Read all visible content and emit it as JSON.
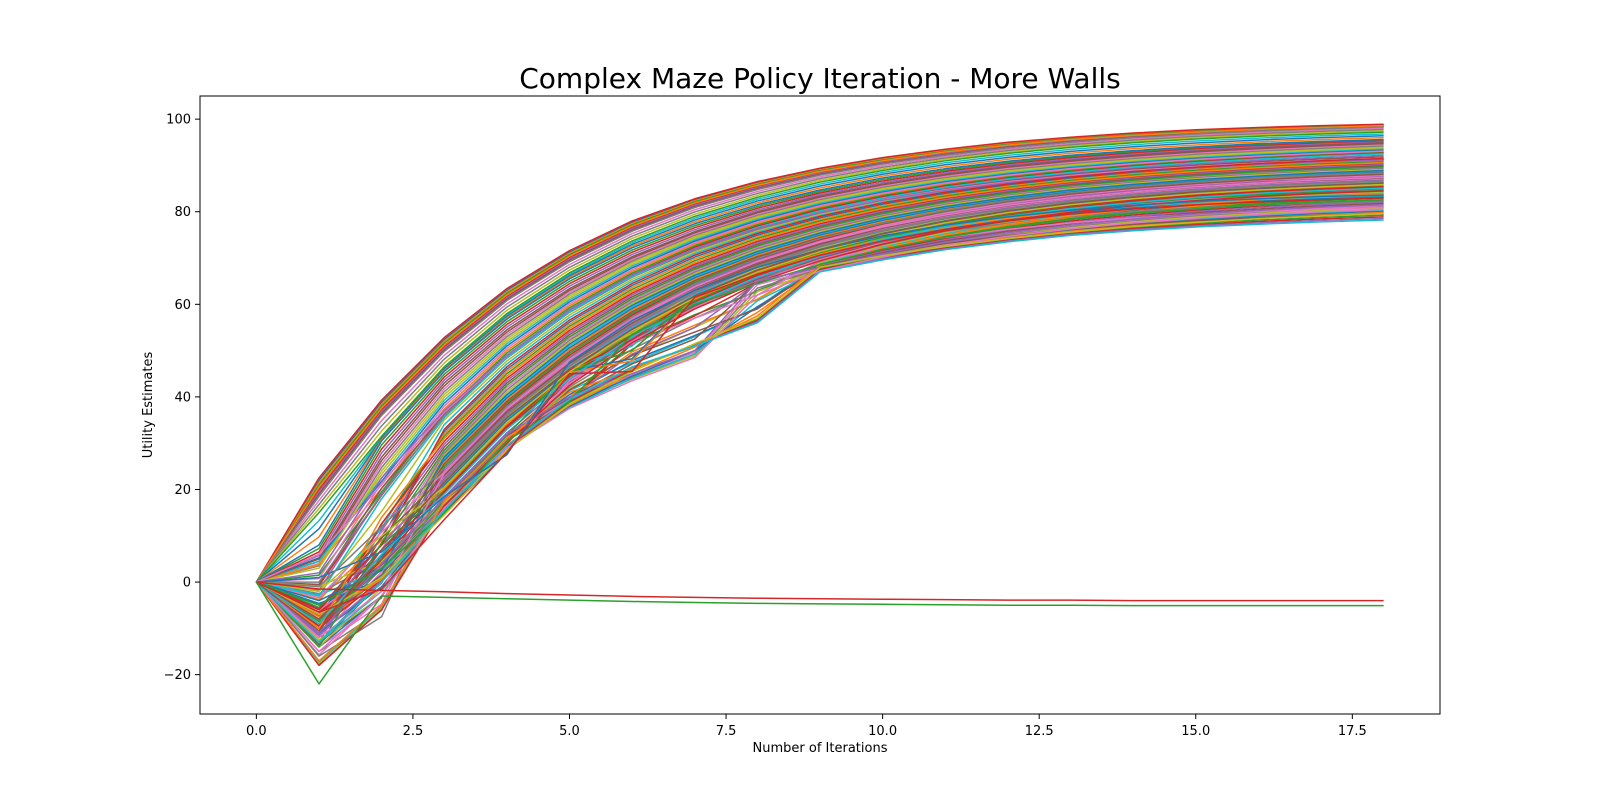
{
  "chart_data": {
    "type": "line",
    "title": "Complex Maze Policy Iteration - More Walls",
    "xlabel": "Number of Iterations",
    "ylabel": "Utility Estimates",
    "xlim": [
      -0.9,
      18.9
    ],
    "ylim": [
      -28.5,
      105
    ],
    "xticks": [
      0.0,
      2.5,
      5.0,
      7.5,
      10.0,
      12.5,
      15.0,
      17.5
    ],
    "xtick_labels": [
      "0.0",
      "2.5",
      "5.0",
      "7.5",
      "10.0",
      "12.5",
      "15.0",
      "17.5"
    ],
    "yticks": [
      -20,
      0,
      20,
      40,
      60,
      80,
      100
    ],
    "ytick_labels": [
      "−20",
      "0",
      "20",
      "40",
      "60",
      "80",
      "100"
    ],
    "grid": false,
    "legend": "none",
    "x": [
      0,
      1,
      2,
      3,
      4,
      5,
      6,
      7,
      8,
      9,
      10,
      11,
      12,
      13,
      14,
      15,
      16,
      17,
      18
    ],
    "palette": [
      "#1f77b4",
      "#ff7f0e",
      "#2ca02c",
      "#d62728",
      "#9467bd",
      "#8c564b",
      "#e377c2",
      "#7f7f7f",
      "#bcbd22",
      "#17becf"
    ],
    "series": [
      {
        "color": "#d62728",
        "values": [
          0,
          22.5,
          39.3,
          52.8,
          63.4,
          71.6,
          78.0,
          82.8,
          86.5,
          89.4,
          91.7,
          93.5,
          95.0,
          96.1,
          97.0,
          97.7,
          98.2,
          98.6,
          98.9
        ]
      },
      {
        "color": "#ff7f0e",
        "values": [
          0,
          20.5,
          37.6,
          51.2,
          62.0,
          70.4,
          76.9,
          81.9,
          85.7,
          88.7,
          91.0,
          92.9,
          94.4,
          95.6,
          96.5,
          97.2,
          97.8,
          98.2,
          98.6
        ]
      },
      {
        "color": "#7f7f7f",
        "values": [
          0,
          18.5,
          36.0,
          49.8,
          60.8,
          69.2,
          75.8,
          80.9,
          84.8,
          87.9,
          90.3,
          92.2,
          93.8,
          95.0,
          96.0,
          96.8,
          97.4,
          97.9,
          98.3
        ]
      },
      {
        "color": "#2ca02c",
        "values": [
          0,
          15.0,
          31.5,
          46.5,
          58.0,
          66.8,
          73.7,
          79.0,
          83.1,
          86.4,
          88.9,
          91.0,
          92.6,
          93.9,
          94.9,
          95.7,
          96.3,
          96.8,
          97.2
        ]
      },
      {
        "color": "#1f77b4",
        "values": [
          0,
          8.0,
          30.5,
          45.5,
          56.8,
          65.5,
          72.2,
          77.4,
          81.5,
          84.7,
          87.3,
          89.3,
          90.9,
          92.2,
          93.2,
          94.0,
          94.7,
          95.2,
          95.6
        ]
      },
      {
        "color": "#8c564b",
        "values": [
          0,
          5.0,
          27.0,
          43.0,
          54.5,
          63.4,
          70.3,
          75.7,
          80.0,
          83.4,
          86.0,
          88.1,
          89.8,
          91.1,
          92.2,
          93.1,
          93.8,
          94.4,
          94.9
        ]
      },
      {
        "color": "#bcbd22",
        "values": [
          0,
          3.0,
          24.0,
          40.5,
          52.5,
          61.8,
          69.0,
          74.6,
          78.9,
          82.3,
          85.0,
          87.1,
          88.8,
          90.1,
          91.2,
          92.1,
          92.8,
          93.4,
          93.9
        ]
      },
      {
        "color": "#e377c2",
        "values": [
          0,
          6.0,
          21.0,
          38.0,
          50.5,
          60.1,
          67.5,
          73.3,
          77.8,
          81.3,
          84.0,
          86.2,
          87.9,
          89.3,
          90.4,
          91.3,
          92.0,
          92.6,
          93.1
        ]
      },
      {
        "color": "#17becf",
        "values": [
          0,
          -3.0,
          18.0,
          35.5,
          48.5,
          58.4,
          66.0,
          72.0,
          76.6,
          80.2,
          83.0,
          85.3,
          87.1,
          88.5,
          89.7,
          90.6,
          91.4,
          92.0,
          92.5
        ]
      },
      {
        "color": "#9467bd",
        "values": [
          0,
          2.0,
          22.5,
          37.0,
          49.0,
          58.8,
          66.3,
          72.0,
          76.4,
          79.8,
          82.5,
          84.6,
          86.3,
          87.6,
          88.7,
          89.5,
          90.2,
          90.8,
          91.2
        ]
      },
      {
        "color": "#d62728",
        "values": [
          0,
          -6.0,
          8.0,
          33.0,
          46.5,
          56.6,
          64.5,
          70.6,
          75.3,
          79.0,
          81.9,
          84.2,
          86.0,
          87.5,
          88.7,
          89.6,
          90.4,
          91.0,
          91.5
        ]
      },
      {
        "color": "#ff7f0e",
        "values": [
          0,
          -10.0,
          14.0,
          31.0,
          44.5,
          54.8,
          62.8,
          69.0,
          73.9,
          77.7,
          80.7,
          83.1,
          85.0,
          86.5,
          87.7,
          88.7,
          89.5,
          90.1,
          90.6
        ]
      },
      {
        "color": "#2ca02c",
        "values": [
          0,
          -14.0,
          8.5,
          28.5,
          42.5,
          53.0,
          61.2,
          67.6,
          72.6,
          76.5,
          79.6,
          82.1,
          84.0,
          85.6,
          86.8,
          87.8,
          88.6,
          89.2,
          89.7
        ]
      },
      {
        "color": "#1f77b4",
        "values": [
          0,
          -4.0,
          2.5,
          27.0,
          40.5,
          51.4,
          59.8,
          66.3,
          71.4,
          75.4,
          78.6,
          81.1,
          83.1,
          84.7,
          85.9,
          86.9,
          87.7,
          88.4,
          88.9
        ]
      },
      {
        "color": "#8c564b",
        "values": [
          0,
          -8.0,
          5.0,
          25.5,
          39.0,
          49.8,
          58.4,
          65.1,
          70.3,
          74.4,
          77.6,
          80.2,
          82.2,
          83.8,
          85.1,
          86.1,
          86.9,
          87.6,
          88.1
        ]
      },
      {
        "color": "#e377c2",
        "values": [
          0,
          -12.0,
          -2.0,
          23.5,
          37.5,
          48.2,
          57.0,
          63.8,
          69.2,
          73.4,
          76.7,
          79.3,
          81.4,
          83.0,
          84.3,
          85.4,
          86.2,
          86.9,
          87.4
        ]
      },
      {
        "color": "#7f7f7f",
        "values": [
          0,
          -16.0,
          -7.5,
          22.0,
          36.0,
          46.8,
          55.6,
          62.6,
          68.1,
          72.4,
          75.8,
          78.5,
          80.6,
          82.3,
          83.6,
          84.6,
          85.5,
          86.1,
          86.6
        ]
      },
      {
        "color": "#bcbd22",
        "values": [
          0,
          -2.0,
          10.0,
          20.5,
          34.5,
          45.4,
          54.3,
          61.4,
          67.0,
          71.4,
          74.9,
          77.6,
          79.8,
          81.5,
          82.8,
          83.9,
          84.7,
          85.4,
          85.9
        ]
      },
      {
        "color": "#17becf",
        "values": [
          0,
          -9.0,
          6.0,
          19.0,
          33.0,
          44.0,
          53.0,
          60.2,
          65.9,
          70.4,
          74.0,
          76.8,
          79.0,
          80.7,
          82.0,
          83.1,
          84.0,
          84.6,
          85.1
        ]
      },
      {
        "color": "#d62728",
        "values": [
          0,
          -18.0,
          -6.0,
          16.5,
          30.0,
          42.5,
          51.7,
          59.0,
          64.8,
          69.4,
          73.0,
          75.9,
          78.1,
          79.9,
          81.3,
          82.4,
          83.3,
          84.0,
          84.5
        ]
      },
      {
        "color": "#ff7f0e",
        "values": [
          0,
          -17.0,
          -5.0,
          17.5,
          31.0,
          41.0,
          46.0,
          51.0,
          57.5,
          68.5,
          72.1,
          75.0,
          77.3,
          79.1,
          80.5,
          81.7,
          82.6,
          83.3,
          83.8
        ]
      },
      {
        "color": "#2ca02c",
        "values": [
          0,
          -5.0,
          3.0,
          15.0,
          30.5,
          39.0,
          53.5,
          60.0,
          64.5,
          68.6,
          71.9,
          74.5,
          76.6,
          78.3,
          79.6,
          80.6,
          81.5,
          82.1,
          82.6
        ]
      },
      {
        "color": "#9467bd",
        "values": [
          0,
          -11.0,
          4.0,
          18.0,
          32.0,
          40.0,
          45.0,
          50.0,
          65.0,
          68.0,
          70.9,
          73.4,
          75.5,
          77.1,
          78.4,
          79.5,
          80.3,
          81.0,
          81.5
        ]
      },
      {
        "color": "#e377c2",
        "values": [
          0,
          -15.0,
          -3.0,
          16.0,
          29.0,
          37.5,
          43.5,
          48.5,
          62.0,
          67.2,
          70.2,
          72.7,
          74.7,
          76.3,
          77.6,
          78.6,
          79.4,
          80.0,
          80.5
        ]
      },
      {
        "color": "#bcbd22",
        "values": [
          0,
          -7.0,
          1.0,
          14.5,
          28.5,
          38.5,
          45.5,
          51.5,
          57.0,
          68.0,
          70.5,
          72.5,
          74.2,
          75.6,
          76.8,
          77.7,
          78.5,
          79.1,
          79.6
        ]
      },
      {
        "color": "#17becf",
        "values": [
          0,
          -13.0,
          0.0,
          15.5,
          29.5,
          39.5,
          46.5,
          51.0,
          56.0,
          67.0,
          69.6,
          71.8,
          73.5,
          74.9,
          75.9,
          76.7,
          77.3,
          77.8,
          78.2
        ]
      },
      {
        "color": "#1f77b4",
        "values": [
          0,
          1.0,
          6.5,
          18.5,
          27.5,
          47.5,
          56.5,
          63.0,
          68.0,
          71.8,
          74.8,
          77.1,
          78.9,
          80.3,
          81.4,
          82.2,
          82.8,
          83.3,
          83.6
        ]
      },
      {
        "color": "#d62728",
        "values": [
          0,
          -6.5,
          -1.5,
          13.5,
          28.0,
          45.0,
          45.5,
          61.5,
          66.5,
          70.6,
          73.7,
          76.1,
          78.0,
          79.5,
          80.6,
          81.5,
          82.1,
          82.6,
          83.0
        ]
      },
      {
        "color": "#8c564b",
        "values": [
          0,
          -10.5,
          7.0,
          21.5,
          35.5,
          46.0,
          54.6,
          61.8,
          67.4,
          71.8,
          75.3,
          78.0,
          80.2,
          81.9,
          83.2,
          84.3,
          85.1,
          85.7,
          86.2
        ]
      },
      {
        "color": "#7f7f7f",
        "values": [
          0,
          -1.0,
          12.0,
          24.5,
          38.0,
          48.5,
          57.3,
          64.4,
          69.9,
          74.2,
          77.6,
          80.3,
          82.4,
          84.1,
          85.4,
          86.4,
          87.3,
          87.9,
          88.4
        ]
      },
      {
        "color": "#d62728",
        "values": [
          0,
          -1.5,
          -1.8,
          -2.1,
          -2.5,
          -2.8,
          -3.1,
          -3.3,
          -3.5,
          -3.6,
          -3.7,
          -3.8,
          -3.9,
          -3.9,
          -4.0,
          -4.0,
          -4.0,
          -4.0,
          -4.0
        ]
      },
      {
        "color": "#2ca02c",
        "values": [
          0,
          -22.0,
          -3.0,
          -3.3,
          -3.6,
          -3.9,
          -4.2,
          -4.4,
          -4.6,
          -4.7,
          -4.8,
          -4.9,
          -5.0,
          -5.0,
          -5.1,
          -5.1,
          -5.1,
          -5.1,
          -5.1
        ]
      }
    ]
  }
}
